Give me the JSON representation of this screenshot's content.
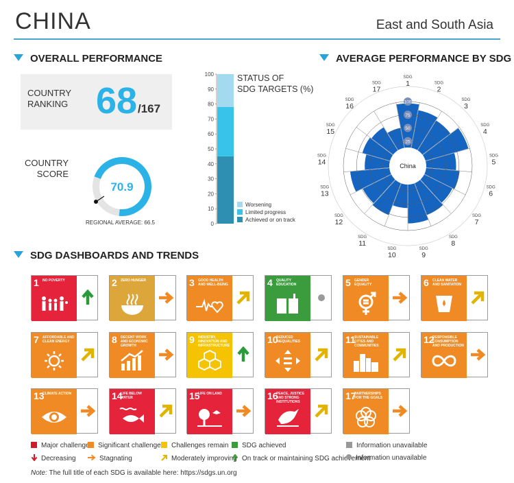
{
  "header": {
    "country": "CHINA",
    "region": "East and South Asia"
  },
  "overall": {
    "title": "OVERALL PERFORMANCE",
    "rank_label_1": "COUNTRY",
    "rank_label_2": "RANKING",
    "rank": "68",
    "rank_total": "/167",
    "score_label_1": "COUNTRY",
    "score_label_2": "SCORE",
    "score": "70.9",
    "regional_average": "REGIONAL AVERAGE: 66.5"
  },
  "dash_title": "SDG DASHBOARDS AND TRENDS",
  "colors": {
    "accent": "#29a3d8",
    "radar": "#1464c0",
    "red": "#d11a2a",
    "orange": "#f08a24",
    "yellow": "#f5c300",
    "green": "#3a9c3c",
    "grey": "#999999"
  },
  "chart_data": [
    {
      "type": "bar",
      "stacked": true,
      "title_lines": [
        "STATUS OF",
        "SDG TARGETS (%)"
      ],
      "ylim": [
        0,
        100
      ],
      "yticks": [
        "0",
        "10",
        "20",
        "30",
        "40",
        "50",
        "60",
        "70",
        "80",
        "90",
        "100"
      ],
      "series": [
        {
          "name": "Worsening",
          "value": 0,
          "color": "#cde9f6"
        },
        {
          "name": "Achieved or on track",
          "value": 45,
          "color": "#2e8fb2"
        },
        {
          "name": "Limited progress",
          "value": 33,
          "color": "#38c4ea"
        },
        {
          "name": "Worsening",
          "value": 22,
          "color": "#a3daf0"
        }
      ],
      "legend": [
        "Worsening",
        "Limited progress",
        "Achieved or on track"
      ],
      "legend_colors": [
        "#a3daf0",
        "#38c4ea",
        "#2e8fb2"
      ]
    },
    {
      "type": "radar",
      "title": "AVERAGE PERFORMANCE BY SDG",
      "center_label": "China",
      "rings": [
        "25",
        "50",
        "75",
        "100"
      ],
      "categories": [
        "SDG 1",
        "SDG 2",
        "SDG 3",
        "SDG 4",
        "SDG 5",
        "SDG 6",
        "SDG 7",
        "SDG 8",
        "SDG 9",
        "SDG 10",
        "SDG 11",
        "SDG 12",
        "SDG 13",
        "SDG 14",
        "SDG 15",
        "SDG 16",
        "SDG 17"
      ],
      "values": [
        97,
        86,
        80,
        98,
        70,
        77,
        73,
        78,
        87,
        58,
        78,
        74,
        88,
        60,
        68,
        65,
        52
      ]
    }
  ],
  "tiles": [
    {
      "n": "1",
      "title": "NO POVERTY",
      "color": "#e5243b",
      "icon": "family-icon",
      "trend": "up"
    },
    {
      "n": "2",
      "title": "ZERO HUNGER",
      "color": "#dda63a",
      "icon": "bowl-icon",
      "trend": "right"
    },
    {
      "n": "3",
      "title": "GOOD HEALTH AND WELL-BEING",
      "color": "#f08a24",
      "icon": "heartbeat-icon",
      "trend": "diag"
    },
    {
      "n": "4",
      "title": "QUALITY EDUCATION",
      "color": "#3a9c3c",
      "icon": "book-icon",
      "trend": "dot"
    },
    {
      "n": "5",
      "title": "GENDER EQUALITY",
      "color": "#f08a24",
      "icon": "gender-icon",
      "trend": "right"
    },
    {
      "n": "6",
      "title": "CLEAN WATER AND SANITATION",
      "color": "#f08a24",
      "icon": "water-icon",
      "trend": "diag"
    },
    {
      "n": "7",
      "title": "AFFORDABLE AND CLEAN ENERGY",
      "color": "#f08a24",
      "icon": "sun-icon",
      "trend": "diag"
    },
    {
      "n": "8",
      "title": "DECENT WORK AND ECONOMIC GROWTH",
      "color": "#f08a24",
      "icon": "growth-icon",
      "trend": "right"
    },
    {
      "n": "9",
      "title": "INDUSTRY, INNOVATION AND INFRASTRUCTURE",
      "color": "#f5c300",
      "icon": "cubes-icon",
      "trend": "up"
    },
    {
      "n": "10",
      "title": "REDUCED INEQUALITIES",
      "color": "#f08a24",
      "icon": "equal-icon",
      "trend": "diag"
    },
    {
      "n": "11",
      "title": "SUSTAINABLE CITIES AND COMMUNITIES",
      "color": "#f08a24",
      "icon": "city-icon",
      "trend": "diag"
    },
    {
      "n": "12",
      "title": "RESPONSIBLE CONSUMPTION AND PRODUCTION",
      "color": "#f08a24",
      "icon": "infinity-icon",
      "trend": "right"
    },
    {
      "n": "13",
      "title": "CLIMATE ACTION",
      "color": "#f08a24",
      "icon": "eye-icon",
      "trend": "right"
    },
    {
      "n": "14",
      "title": "LIFE BELOW WATER",
      "color": "#e5243b",
      "icon": "fish-icon",
      "trend": "diag"
    },
    {
      "n": "15",
      "title": "LIFE ON LAND",
      "color": "#e5243b",
      "icon": "tree-icon",
      "trend": "right"
    },
    {
      "n": "16",
      "title": "PEACE, JUSTICE AND STRONG INSTITUTIONS",
      "color": "#e5243b",
      "icon": "dove-icon",
      "trend": "diag"
    },
    {
      "n": "17",
      "title": "PARTNERSHIPS FOR THE GOALS",
      "color": "#f08a24",
      "icon": "rings-icon",
      "trend": "right"
    }
  ],
  "legend": {
    "major": "Major challenges",
    "significant": "Significant challenges",
    "remain": "Challenges remain",
    "achieved": "SDG achieved",
    "info": "Information unavailable",
    "decreasing": "Decreasing",
    "stagnating": "Stagnating",
    "improving": "Moderately improving",
    "ontrack": "On track or maintaining SDG achievement",
    "info2": "Information unavailable"
  },
  "note_label": "Note:",
  "note": "The full title of each SDG is available here: https://sdgs.un.org"
}
